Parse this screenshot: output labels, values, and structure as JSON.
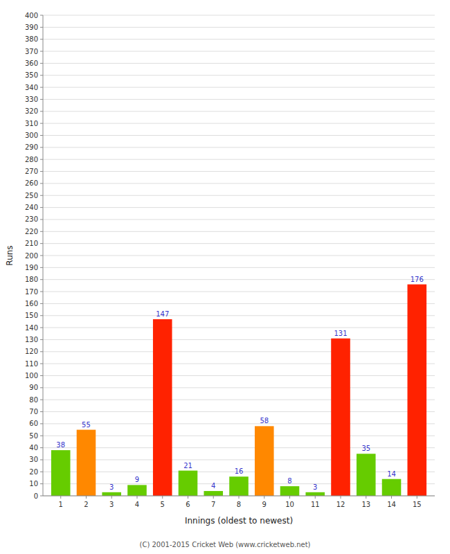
{
  "chart_data": {
    "type": "bar",
    "x": [
      1,
      2,
      3,
      4,
      5,
      6,
      7,
      8,
      9,
      10,
      11,
      12,
      13,
      14,
      15
    ],
    "values": [
      38,
      55,
      3,
      9,
      147,
      21,
      4,
      16,
      58,
      8,
      3,
      131,
      35,
      14,
      176
    ],
    "colors": [
      "#66cc00",
      "#ff8800",
      "#66cc00",
      "#66cc00",
      "#ff2200",
      "#66cc00",
      "#66cc00",
      "#66cc00",
      "#ff8800",
      "#66cc00",
      "#66cc00",
      "#ff2200",
      "#66cc00",
      "#66cc00",
      "#ff2200"
    ],
    "xlabel": "Innings (oldest to newest)",
    "ylabel": "Runs",
    "footer": "(C) 2001-2015 Cricket Web (www.cricketweb.net)",
    "xlim": [
      0.3,
      15.7
    ],
    "xticks": [
      1,
      2,
      3,
      4,
      5,
      6,
      7,
      8,
      9,
      10,
      11,
      12,
      13,
      14,
      15
    ],
    "ylim": [
      0,
      400
    ],
    "yticks": [
      0,
      10,
      20,
      30,
      40,
      50,
      60,
      70,
      80,
      90,
      100,
      110,
      120,
      130,
      140,
      150,
      160,
      170,
      180,
      190,
      200,
      210,
      220,
      230,
      240,
      250,
      260,
      270,
      280,
      290,
      300,
      310,
      320,
      330,
      340,
      350,
      360,
      370,
      380,
      390,
      400
    ],
    "grid": true,
    "data_labels": true
  }
}
